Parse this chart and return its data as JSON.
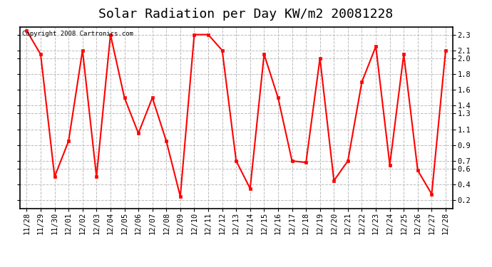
{
  "title": "Solar Radiation per Day KW/m2 20081228",
  "copyright_text": "Copyright 2008 Cartronics.com",
  "labels": [
    "11/28",
    "11/29",
    "11/30",
    "12/01",
    "12/02",
    "12/03",
    "12/04",
    "12/05",
    "12/06",
    "12/07",
    "12/08",
    "12/09",
    "12/10",
    "12/11",
    "12/12",
    "12/13",
    "12/14",
    "12/15",
    "12/16",
    "12/17",
    "12/18",
    "12/19",
    "12/20",
    "12/21",
    "12/22",
    "12/23",
    "12/24",
    "12/25",
    "12/26",
    "12/27",
    "12/28"
  ],
  "values": [
    2.35,
    2.05,
    0.5,
    0.95,
    2.1,
    0.5,
    2.3,
    1.5,
    1.05,
    1.5,
    0.95,
    0.25,
    2.3,
    2.3,
    2.1,
    0.7,
    0.35,
    2.05,
    1.5,
    0.7,
    0.68,
    2.0,
    0.45,
    0.7,
    1.7,
    2.15,
    0.65,
    2.05,
    0.58,
    0.28,
    2.1
  ],
  "line_color": "#ff0000",
  "marker": "s",
  "marker_size": 3,
  "line_width": 1.5,
  "background_color": "#ffffff",
  "plot_bg_color": "#ffffff",
  "grid_color": "#bbbbbb",
  "grid_style": "--",
  "ylim": [
    0.1,
    2.4
  ],
  "yticks": [
    0.2,
    0.4,
    0.6,
    0.7,
    0.9,
    1.1,
    1.3,
    1.4,
    1.6,
    1.8,
    2.0,
    2.1,
    2.3
  ],
  "ytick_labels": [
    "0.2",
    "0.4",
    "0.6",
    "0.7",
    "0.9",
    "1.1",
    "1.3",
    "1.4",
    "1.6",
    "1.8",
    "2.0",
    "2.1",
    "2.3"
  ],
  "title_fontsize": 13,
  "tick_fontsize": 7.5,
  "copyright_fontsize": 6.5
}
